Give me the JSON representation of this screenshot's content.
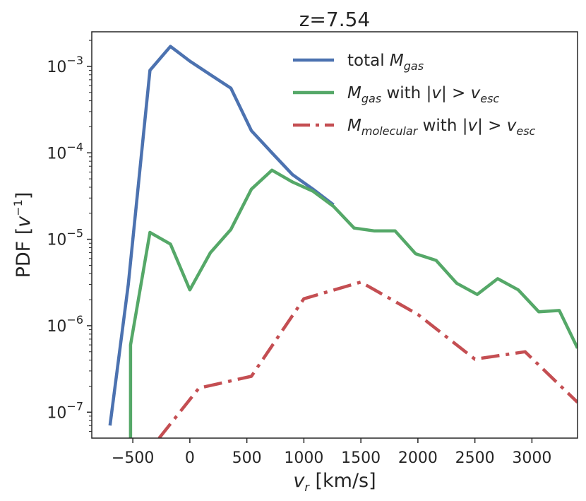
{
  "chart_data": {
    "type": "line",
    "title": "z=7.54",
    "xlabel": {
      "var": "v",
      "sub": "r",
      "unit": " [km/s]"
    },
    "ylabel": {
      "text": "PDF [",
      "var": "v",
      "sup": "−1",
      "close": "]"
    },
    "xlim": [
      -860,
      3400
    ],
    "ylim_log10": [
      -7.3,
      -2.6
    ],
    "yscale": "log",
    "x_ticks": [
      -500,
      0,
      500,
      1000,
      1500,
      2000,
      2500,
      3000
    ],
    "x_tick_labels": [
      "−500",
      "0",
      "500",
      "1000",
      "1500",
      "2000",
      "2500",
      "3000"
    ],
    "y_tick_exponents": [
      -3,
      -4,
      -5,
      -6,
      -7
    ],
    "y_tick_labels": [
      "−3",
      "−4",
      "−5",
      "−6",
      "−7"
    ],
    "y_tick_base": "10",
    "legend_position": "top-right",
    "series": [
      {
        "name": "total M_gas",
        "label_parts": [
          "total ",
          "M",
          "gas",
          ""
        ],
        "color": "#4c72b0",
        "style": "solid",
        "x": [
          -700,
          -540,
          -350,
          -170,
          0,
          180,
          360,
          540,
          720,
          900,
          1080,
          1260
        ],
        "y": [
          7e-08,
          3e-06,
          0.0009,
          0.0017,
          0.00115,
          0.0008,
          0.00056,
          0.00018,
          0.0001,
          5.6e-05,
          3.8e-05,
          2.5e-05
        ]
      },
      {
        "name": "M_gas with |v| > v_esc",
        "label_parts": [
          "",
          "M",
          "gas",
          " with |v| > v"
        ],
        "label_tail_sub": "esc",
        "color": "#55a868",
        "style": "solid",
        "x": [
          -520,
          -520,
          -350,
          -170,
          0,
          180,
          360,
          540,
          720,
          900,
          1080,
          1260,
          1440,
          1620,
          1800,
          1980,
          2160,
          2340,
          2520,
          2700,
          2880,
          3060,
          3240,
          3400
        ],
        "y": [
          5e-08,
          6e-07,
          1.2e-05,
          8.8e-06,
          2.6e-06,
          7e-06,
          1.3e-05,
          3.8e-05,
          6.3e-05,
          4.6e-05,
          3.6e-05,
          2.4e-05,
          1.35e-05,
          1.25e-05,
          1.25e-05,
          6.8e-06,
          5.7e-06,
          3.1e-06,
          2.3e-06,
          3.5e-06,
          2.6e-06,
          1.45e-06,
          1.5e-06,
          5.5e-07
        ]
      },
      {
        "name": "M_molecular with |v| > v_esc",
        "label_parts": [
          "",
          "M",
          "molecular",
          " with |v| > v"
        ],
        "label_tail_sub": "esc",
        "color": "#c44e52",
        "style": "dashdot",
        "x": [
          -270,
          80,
          540,
          1000,
          1500,
          2000,
          2500,
          2940,
          3400
        ],
        "y": [
          5e-08,
          1.9e-07,
          2.6e-07,
          2.05e-06,
          3.2e-06,
          1.35e-06,
          4.1e-07,
          5e-07,
          1.3e-07
        ]
      }
    ]
  }
}
